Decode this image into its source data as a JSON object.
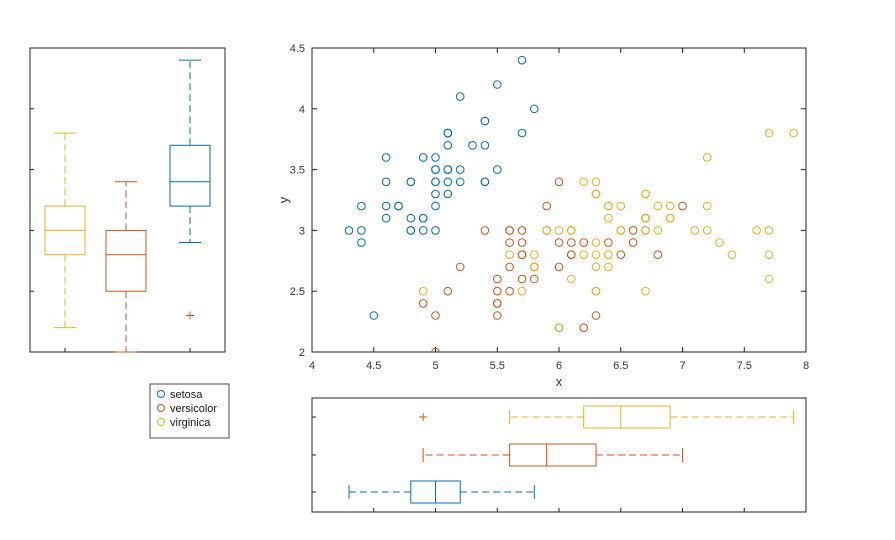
{
  "figure": {
    "background": "#ffffff"
  },
  "palette": {
    "setosa": "#0072BD",
    "versicolor": "#D95319",
    "virginica": "#EDB120",
    "outlier": "#D95319",
    "axis": "#262626",
    "tick_label_color": "#3a3a3a",
    "legend_border": "#4d4d4d"
  },
  "legend": {
    "position": "bottom-left-outside",
    "items": [
      {
        "label": "setosa",
        "marker": "open-circle",
        "color": "#0072BD"
      },
      {
        "label": "versicolor",
        "marker": "open-circle",
        "color": "#D95319"
      },
      {
        "label": "virginica",
        "marker": "open-circle",
        "color": "#EDB120"
      }
    ]
  },
  "chart_data": [
    {
      "id": "scatter-main",
      "type": "scatter",
      "title": "",
      "xlabel": "x",
      "ylabel": "y",
      "xlim": [
        4,
        8
      ],
      "ylim": [
        2,
        4.5
      ],
      "xticks": [
        "4",
        "4.5",
        "5",
        "5.5",
        "6",
        "6.5",
        "7",
        "7.5",
        "8"
      ],
      "yticks": [
        "2",
        "2.5",
        "3",
        "3.5",
        "4",
        "4.5"
      ],
      "grid": false,
      "marker": "open-circle",
      "series": [
        {
          "name": "setosa",
          "color": "#0072BD",
          "x": [
            5.1,
            4.9,
            4.7,
            4.6,
            5.0,
            5.4,
            4.6,
            5.0,
            4.4,
            4.9,
            5.4,
            4.8,
            4.8,
            4.3,
            5.8,
            5.7,
            5.4,
            5.1,
            5.7,
            5.1,
            5.4,
            5.1,
            4.6,
            5.1,
            4.8,
            5.0,
            5.0,
            5.2,
            5.2,
            4.7,
            4.8,
            5.4,
            5.2,
            5.5,
            4.9,
            5.0,
            5.5,
            4.9,
            4.4,
            5.1,
            5.0,
            4.5,
            4.4,
            5.0,
            5.1,
            4.8,
            5.1,
            4.6,
            5.3,
            5.0
          ],
          "y": [
            3.5,
            3.0,
            3.2,
            3.1,
            3.6,
            3.9,
            3.4,
            3.4,
            2.9,
            3.1,
            3.7,
            3.4,
            3.0,
            3.0,
            4.0,
            4.4,
            3.9,
            3.5,
            3.8,
            3.8,
            3.4,
            3.7,
            3.6,
            3.3,
            3.4,
            3.0,
            3.4,
            3.5,
            3.4,
            3.2,
            3.1,
            3.4,
            4.1,
            4.2,
            3.1,
            3.2,
            3.5,
            3.6,
            3.0,
            3.4,
            3.5,
            2.3,
            3.2,
            3.5,
            3.8,
            3.0,
            3.8,
            3.2,
            3.7,
            3.3
          ]
        },
        {
          "name": "versicolor",
          "color": "#D95319",
          "x": [
            7.0,
            6.4,
            6.9,
            5.5,
            6.5,
            5.7,
            6.3,
            4.9,
            6.6,
            5.2,
            5.0,
            5.9,
            6.0,
            6.1,
            5.6,
            6.7,
            5.6,
            5.8,
            6.2,
            5.6,
            5.9,
            6.1,
            6.3,
            6.1,
            6.4,
            6.6,
            6.8,
            6.7,
            6.0,
            5.7,
            5.5,
            5.5,
            5.8,
            6.0,
            5.4,
            6.0,
            6.7,
            6.3,
            5.6,
            5.5,
            5.5,
            6.1,
            5.8,
            5.0,
            5.6,
            5.7,
            5.7,
            6.2,
            5.1,
            5.7
          ],
          "y": [
            3.2,
            3.2,
            3.1,
            2.3,
            2.8,
            2.8,
            3.3,
            2.4,
            2.9,
            2.7,
            2.0,
            3.0,
            2.2,
            2.9,
            2.9,
            3.1,
            3.0,
            2.7,
            2.2,
            2.5,
            3.2,
            2.8,
            2.5,
            2.8,
            2.9,
            3.0,
            2.8,
            3.0,
            2.9,
            2.6,
            2.4,
            2.4,
            2.7,
            2.7,
            3.0,
            3.4,
            3.1,
            2.3,
            3.0,
            2.5,
            2.6,
            3.0,
            2.6,
            2.3,
            2.7,
            3.0,
            2.9,
            2.9,
            2.5,
            2.8
          ]
        },
        {
          "name": "virginica",
          "color": "#EDB120",
          "x": [
            6.3,
            5.8,
            7.1,
            6.3,
            6.5,
            7.6,
            4.9,
            7.3,
            6.7,
            7.2,
            6.5,
            6.4,
            6.8,
            5.7,
            5.8,
            6.4,
            6.5,
            7.7,
            7.7,
            6.0,
            6.9,
            5.6,
            7.7,
            6.3,
            6.7,
            7.2,
            6.2,
            6.1,
            6.4,
            7.2,
            7.4,
            7.9,
            6.4,
            6.3,
            6.1,
            7.7,
            6.3,
            6.4,
            6.0,
            6.9,
            6.7,
            6.9,
            5.8,
            6.8,
            6.7,
            6.7,
            6.3,
            6.5,
            6.2,
            5.9
          ],
          "y": [
            3.3,
            2.7,
            3.0,
            2.9,
            3.0,
            3.0,
            2.5,
            2.9,
            2.5,
            3.6,
            3.2,
            2.7,
            3.0,
            2.5,
            2.8,
            3.2,
            3.0,
            3.8,
            2.6,
            2.2,
            3.2,
            2.8,
            2.8,
            2.7,
            3.3,
            3.2,
            2.8,
            3.0,
            2.8,
            3.0,
            2.8,
            3.8,
            2.8,
            2.8,
            2.6,
            3.0,
            3.4,
            3.1,
            3.0,
            3.1,
            3.1,
            3.1,
            2.7,
            3.2,
            3.3,
            3.0,
            2.5,
            3.0,
            3.4,
            3.0
          ]
        }
      ]
    },
    {
      "id": "boxplot-y-marginal",
      "type": "boxplot",
      "orientation": "vertical",
      "value_axis": "y",
      "value_lim": [
        2,
        4.5
      ],
      "groups": [
        {
          "name": "virginica",
          "color": "#EDB120",
          "whisker_low": 2.2,
          "q1": 2.8,
          "median": 3.0,
          "q3": 3.2,
          "whisker_high": 3.8,
          "outliers": []
        },
        {
          "name": "versicolor",
          "color": "#D95319",
          "whisker_low": 2.0,
          "q1": 2.5,
          "median": 2.8,
          "q3": 3.0,
          "whisker_high": 3.4,
          "outliers": []
        },
        {
          "name": "setosa",
          "color": "#0072BD",
          "whisker_low": 2.9,
          "q1": 3.2,
          "median": 3.4,
          "q3": 3.7,
          "whisker_high": 4.4,
          "outliers": [
            2.3
          ]
        }
      ]
    },
    {
      "id": "boxplot-x-marginal",
      "type": "boxplot",
      "orientation": "horizontal",
      "value_axis": "x",
      "value_lim": [
        4,
        8
      ],
      "groups": [
        {
          "name": "virginica",
          "color": "#EDB120",
          "whisker_low": 5.6,
          "q1": 6.2,
          "median": 6.5,
          "q3": 6.9,
          "whisker_high": 7.9,
          "outliers": [
            4.9
          ]
        },
        {
          "name": "versicolor",
          "color": "#D95319",
          "whisker_low": 4.9,
          "q1": 5.6,
          "median": 5.9,
          "q3": 6.3,
          "whisker_high": 7.0,
          "outliers": []
        },
        {
          "name": "setosa",
          "color": "#0072BD",
          "whisker_low": 4.3,
          "q1": 4.8,
          "median": 5.0,
          "q3": 5.2,
          "whisker_high": 5.8,
          "outliers": []
        }
      ]
    }
  ]
}
